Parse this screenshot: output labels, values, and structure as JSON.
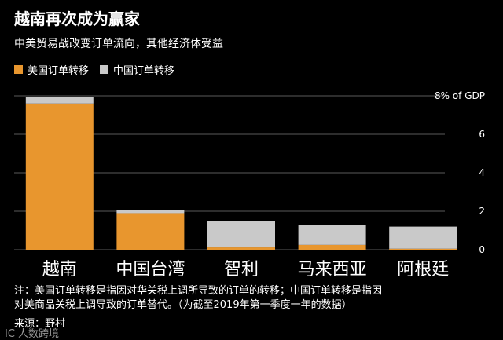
{
  "title": "越南再次成为赢家",
  "subtitle": "中美贸易战改变订单流向，其他经济体受益",
  "notes": [
    "注：美国订单转移是指因对华关税上调所导致的订单的转移；中国订单转移是指因",
    "对美商品关税上调导致的订单替代。（为截至2019年第一季度一年的数据）"
  ],
  "source": "来源：野村",
  "watermark": "IC 人数跨境",
  "colors": {
    "us_shift": "#E8962E",
    "china_shift": "#C9C9C9",
    "background": "#000000",
    "gridline": "#5a5a5a"
  },
  "chart_data": {
    "type": "bar",
    "stacked": true,
    "categories": [
      "越南",
      "中国台湾",
      "智利",
      "马来西亚",
      "阿根廷"
    ],
    "series": [
      {
        "name": "美国订单转移",
        "values": [
          7.6,
          1.9,
          0.12,
          0.25,
          0.05
        ]
      },
      {
        "name": "中国订单转移",
        "values": [
          0.35,
          0.15,
          1.38,
          1.05,
          1.15
        ]
      }
    ],
    "ylim": [
      0,
      8
    ],
    "yticks": [
      0,
      2,
      4,
      6,
      8
    ],
    "ytick_labels": [
      "0",
      "2",
      "4",
      "6",
      "8% of GDP"
    ],
    "ylabel": "",
    "xlabel": "",
    "grid": true,
    "legend": "top-left"
  }
}
